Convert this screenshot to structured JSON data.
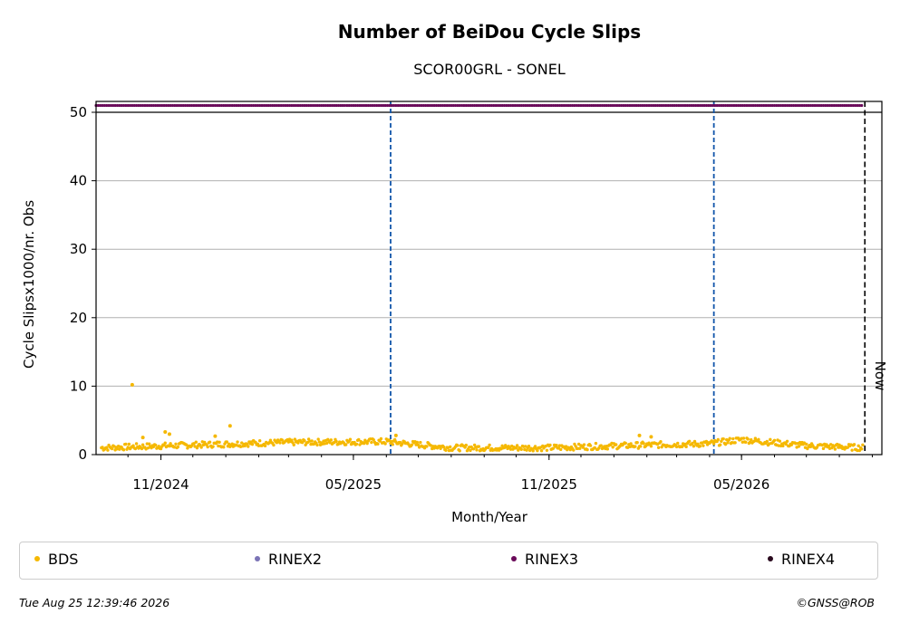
{
  "colors": {
    "bds": "#f5b800",
    "rinex2": "#7b74b6",
    "rinex3": "#6a0a5a",
    "rinex4": "#2a0a1e",
    "event_line": "#1155aa",
    "now_line": "#000000",
    "grid": "#b0b0b0"
  },
  "footer": {
    "timestamp": "Tue Aug 25 12:39:46 2026",
    "credit": "©GNSS@ROB"
  },
  "chart_data": {
    "type": "scatter",
    "title": "Number of BeiDou Cycle Slips",
    "subtitle": "SCOR00GRL - SONEL",
    "xlabel": "Month/Year",
    "ylabel": "Cycle Slipsx1000/nr. Obs",
    "xlim": [
      "2024-09-01",
      "2026-09-10"
    ],
    "ylim": [
      0,
      50
    ],
    "y_ticks": [
      0,
      10,
      20,
      30,
      40,
      50
    ],
    "x_ticks": [
      {
        "date": "2024-11-01",
        "label": "11/2024"
      },
      {
        "date": "2025-05-01",
        "label": "05/2025"
      },
      {
        "date": "2025-11-01",
        "label": "11/2025"
      },
      {
        "date": "2026-05-01",
        "label": "05/2026"
      }
    ],
    "grid": "y",
    "event_lines": [
      "2025-06-05",
      "2026-04-05"
    ],
    "now_line": {
      "date": "2026-08-25",
      "label": "Now"
    },
    "series": [
      {
        "name": "BDS",
        "x_start": "2024-09-06",
        "x_end": "2026-08-23",
        "baseline": [
          [
            "2024-09-06",
            1.0
          ],
          [
            "2024-12-01",
            1.4
          ],
          [
            "2025-03-01",
            1.8
          ],
          [
            "2025-06-01",
            1.9
          ],
          [
            "2025-08-01",
            1.0
          ],
          [
            "2025-11-01",
            1.0
          ],
          [
            "2026-02-01",
            1.4
          ],
          [
            "2026-04-01",
            1.6
          ],
          [
            "2026-05-01",
            2.2
          ],
          [
            "2026-07-01",
            1.3
          ],
          [
            "2026-08-23",
            1.0
          ]
        ],
        "outliers": [
          [
            "2024-10-05",
            10.2
          ],
          [
            "2024-10-15",
            2.5
          ],
          [
            "2024-11-05",
            3.3
          ],
          [
            "2024-11-09",
            3.0
          ],
          [
            "2025-01-05",
            4.2
          ],
          [
            "2024-12-22",
            2.7
          ],
          [
            "2025-06-10",
            2.8
          ],
          [
            "2026-01-25",
            2.8
          ],
          [
            "2026-02-05",
            2.6
          ]
        ]
      },
      {
        "name": "RINEX2"
      },
      {
        "name": "RINEX3",
        "x_start": "2024-09-01",
        "x_end": "2026-08-23",
        "y": 51
      },
      {
        "name": "RINEX4"
      }
    ]
  }
}
